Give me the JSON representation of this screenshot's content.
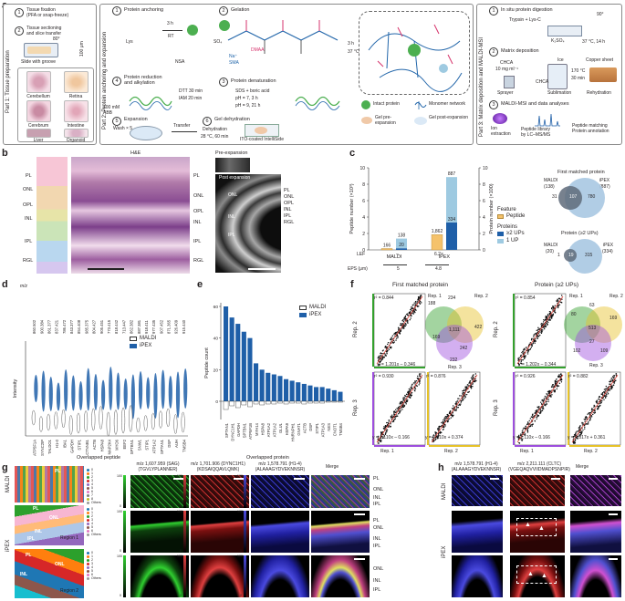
{
  "a": {
    "label": "a",
    "part1": {
      "title": "Part 1: Tissue preparation",
      "step1": "Tissue fixation\n(PFA or snap-freeze)",
      "step2": "Tissue sectioning\nand slice transfer",
      "angle": "80°",
      "thickness": "100 μm",
      "slide": "Slide with groove",
      "tissues": [
        "Cerebellum",
        "Retina",
        "Cerebrum",
        "Intestine",
        "Liver",
        "Organoid"
      ]
    },
    "part2": {
      "title": "Part 2: Protein anchoring and expansion",
      "s1": "Protein anchoring",
      "s2": "Gelation",
      "s3": "Protein denaturation",
      "s4": "Protein reduction\nand alkylation",
      "s5": "Expansion",
      "s6": "Gel dehydration",
      "t_3h": "3 h",
      "t_rt": "RT",
      "t_3h_b": "3 h",
      "t_37": "37 °C",
      "lys": "Lys",
      "nsa": "NSA",
      "na": "Na⁺",
      "sma": "SMA",
      "dmaa": "DMAA",
      "so4": "SO₄",
      "dtt": "DTT 30 min",
      "iam": "IAM 20 min",
      "sds": "SDS + boric acid",
      "ph7": "pH = 7, 3 h",
      "ph9": "pH = 9, 21 h",
      "abb": "100 mM ABB",
      "wash": "Wash × 5",
      "transfer": "Transfer",
      "dehydration": "Dehydration",
      "dehyd_cond": "28 °C, 60 min",
      "ito": "ITO-coated IntelliSide",
      "legend": [
        "Intact protein",
        "Monomer network",
        "Gel pre-expansion",
        "Gel post-expansion"
      ]
    },
    "part3": {
      "title": "Part 3: Matrix deposition and MALDI-MSI",
      "s1": "In situ protein digestion",
      "trypsin": "Trypsin + Lys-C",
      "k2so4": "K₂SO₄",
      "cond": "37 °C, 14 h",
      "angle": "90°",
      "s2": "Matrix deposition",
      "chca": "CHCA",
      "chca_conc": "10 mg ml⁻¹",
      "sprayer": "Sprayer",
      "sublimation": "Sublimation",
      "ice": "Ice",
      "chca2": "CHCA",
      "temp": "170 °C",
      "time": "30 min",
      "copper": "Copper sheet",
      "rehydration": "Rehydration",
      "s3": "MALDI-MSI and data analyses",
      "ion": "Ion\nextraction",
      "library": "Peptide library\nby LC–MS/MS",
      "match": "Peptide matching\nProtein annotation"
    }
  },
  "b": {
    "label": "b",
    "he_title": "H&E",
    "pre": "Pre-expansion",
    "post": "Post expansion",
    "layers": [
      "PL",
      "ONL",
      "OPL",
      "INL",
      "IPL",
      "RGL"
    ],
    "post_layers": [
      "PL",
      "ONL",
      "OPL",
      "INL",
      "IPL",
      "RGL"
    ],
    "inner": [
      "ONL",
      "INL",
      "IPL"
    ]
  },
  "c": {
    "label": "c",
    "ylabel_left": "Peptide number (×10³)",
    "ylabel_right": "Protein number (×100)",
    "yticks_left": [
      "0",
      "2",
      "4",
      "6",
      "8",
      "10"
    ],
    "yticks_right": [
      "0",
      "2",
      "4",
      "6",
      "8",
      "10"
    ],
    "lef_label": "LEF",
    "eps_label": "EPS (μm)",
    "groups": [
      {
        "name": "MALDI",
        "lef": "–",
        "eps": "5"
      },
      {
        "name": "iPEX",
        "lef": "6.2×",
        "eps": "4.8"
      }
    ],
    "feature_title": "Feature",
    "feature": "Peptide",
    "proteins_title": "Proteins",
    "proteins": [
      "≥2 UPs",
      "1 UP"
    ],
    "venn1_title": "First matched protein",
    "venn2_title": "Protein (≥2 UPs)",
    "venn1": {
      "left": "MALDI",
      "left_n": "(138)",
      "right": "iPEX",
      "right_n": "(887)",
      "only_left": "31",
      "overlap": "107",
      "only_right": "780"
    },
    "venn2": {
      "left": "MALDI",
      "left_n": "(20)",
      "right": "iPEX",
      "right_n": "(334)",
      "only_left": "1",
      "overlap": "19",
      "only_right": "315"
    }
  },
  "d": {
    "label": "d",
    "ylabel": "Intensity",
    "xlabel": "Overlapped peptide",
    "mz_label": "m/z",
    "legend": [
      "MALDI",
      "iPEX"
    ]
  },
  "e": {
    "label": "e",
    "ylabel": "Peptide count",
    "xlabel": "Overlapped protein",
    "legend": [
      "MALDI",
      "iPEX"
    ]
  },
  "f": {
    "label": "f",
    "title1": "First matched protein",
    "title2": "Protein (≥2 UPs)",
    "rep": [
      "Rep. 1",
      "Rep. 2",
      "Rep. 3"
    ],
    "left": {
      "r2": [
        "r² = 0.844",
        "r² = 0.930",
        "r² = 0.876"
      ],
      "eq": [
        "y = 1.201x – 0.346",
        "y = 1.110x – 0.166",
        "y = 0.810x + 0.374"
      ],
      "venn": [
        "234",
        "422",
        "1,111",
        "188",
        "169",
        "232",
        "242"
      ]
    },
    "right": {
      "r2": [
        "r² = 0.854",
        "r² = 0.926",
        "r² = 0.882"
      ],
      "eq": [
        "y = 1.202x – 0.344",
        "y = 1.110x – 0.166",
        "y = 0.817x + 0.361"
      ],
      "venn": [
        "63",
        "169",
        "513",
        "80",
        "102",
        "109",
        "27"
      ]
    }
  },
  "g": {
    "label": "g",
    "maldi": "MALDI",
    "ipex": "iPEX",
    "region1": "Region 1",
    "region2": "Region 2",
    "cluster_legend": [
      "0",
      "1",
      "2",
      "3",
      "4",
      "5",
      "6",
      "7",
      "8",
      "Others"
    ],
    "layers": [
      "PL",
      "ONL",
      "INL",
      "IPL"
    ],
    "ch1": "m/z 1,607.959 (SAG)\n(TGVLYPLANNER)",
    "ch2": "m/z 1,701.906 (DYNC1H1)\n(KDSAIQQAVLQMK)",
    "ch3": "m/z 1,578.791 (H1-4)\n(ALAAAGYDVEKNNSR)",
    "merge": "Merge",
    "scale": [
      "0",
      "100"
    ]
  },
  "h": {
    "label": "h",
    "ch1": "m/z 1,578.791 (H1-4)\n(ALAAAGYDVEKNNSR)",
    "ch2": "m/z 2,211.111 (CLTC)\n(VGEQAQVVIIDMADPSNPIR)",
    "merge": "Merge",
    "maldi": "MALDI",
    "ipex": "iPEX"
  },
  "colors": {
    "maldi": "#ffffff",
    "ipex": "#2b6cb0",
    "peptide": "#f5c26b",
    "up2": "#1f5fa8",
    "up1": "#9ecae1",
    "venn_l": "#5f6b7a",
    "venn_r": "#a9c8e2",
    "green": "#33a02c",
    "red": "#d62728",
    "blue": "#2c3ec8",
    "purple": "#9d4edd",
    "yellow": "#e6c229"
  }
}
